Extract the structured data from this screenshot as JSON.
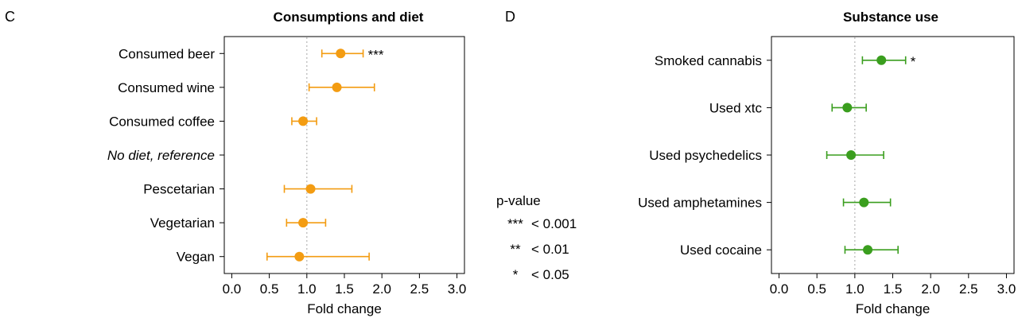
{
  "panel_c_letter": "C",
  "panel_d_letter": "D",
  "legend": {
    "title": "p-value",
    "entries": [
      {
        "stars": "***",
        "label": "< 0.001"
      },
      {
        "stars": "**",
        "label": "< 0.01"
      },
      {
        "stars": "*",
        "label": "< 0.05"
      }
    ]
  },
  "chart_data": [
    {
      "type": "scatter",
      "title": "Consumptions and diet",
      "xlabel": "Fold change",
      "ylabel": "",
      "xlim": [
        -0.1,
        3.1
      ],
      "xticks": [
        0.0,
        0.5,
        1.0,
        1.5,
        2.0,
        2.5,
        3.0
      ],
      "xtick_labels": [
        "0.0",
        "0.5",
        "1.0",
        "1.5",
        "2.0",
        "2.5",
        "3.0"
      ],
      "reference_line": 1.0,
      "color": "#F39C12",
      "categories": [
        "Consumed beer",
        "Consumed wine",
        "Consumed coffee",
        "No diet, reference",
        "Pescetarian",
        "Vegetarian",
        "Vegan"
      ],
      "reference_category": "No diet, reference",
      "points": [
        {
          "category": "Consumed beer",
          "estimate": 1.45,
          "lower": 1.2,
          "upper": 1.75,
          "sig": "***"
        },
        {
          "category": "Consumed wine",
          "estimate": 1.4,
          "lower": 1.03,
          "upper": 1.9,
          "sig": ""
        },
        {
          "category": "Consumed coffee",
          "estimate": 0.95,
          "lower": 0.8,
          "upper": 1.13,
          "sig": ""
        },
        {
          "category": "Pescetarian",
          "estimate": 1.05,
          "lower": 0.7,
          "upper": 1.6,
          "sig": ""
        },
        {
          "category": "Vegetarian",
          "estimate": 0.95,
          "lower": 0.73,
          "upper": 1.25,
          "sig": ""
        },
        {
          "category": "Vegan",
          "estimate": 0.9,
          "lower": 0.47,
          "upper": 1.83,
          "sig": ""
        }
      ]
    },
    {
      "type": "scatter",
      "title": "Substance use",
      "xlabel": "Fold change",
      "ylabel": "",
      "xlim": [
        -0.1,
        3.1
      ],
      "xticks": [
        0.0,
        0.5,
        1.0,
        1.5,
        2.0,
        2.5,
        3.0
      ],
      "xtick_labels": [
        "0.0",
        "0.5",
        "1.0",
        "1.5",
        "2.0",
        "2.5",
        "3.0"
      ],
      "reference_line": 1.0,
      "color": "#3A9E1E",
      "categories": [
        "Smoked cannabis",
        "Used xtc",
        "Used psychedelics",
        "Used amphetamines",
        "Used cocaine"
      ],
      "points": [
        {
          "category": "Smoked cannabis",
          "estimate": 1.35,
          "lower": 1.1,
          "upper": 1.67,
          "sig": "*"
        },
        {
          "category": "Used xtc",
          "estimate": 0.9,
          "lower": 0.7,
          "upper": 1.15,
          "sig": ""
        },
        {
          "category": "Used psychedelics",
          "estimate": 0.95,
          "lower": 0.63,
          "upper": 1.38,
          "sig": ""
        },
        {
          "category": "Used amphetamines",
          "estimate": 1.12,
          "lower": 0.85,
          "upper": 1.47,
          "sig": ""
        },
        {
          "category": "Used cocaine",
          "estimate": 1.17,
          "lower": 0.87,
          "upper": 1.57,
          "sig": ""
        }
      ]
    }
  ]
}
